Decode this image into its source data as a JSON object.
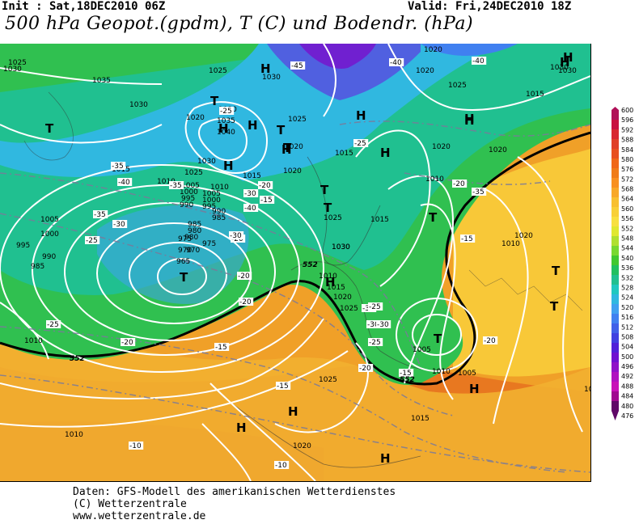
{
  "header": {
    "init": "Init : Sat,18DEC2010 06Z",
    "valid": "Valid: Fri,24DEC2010 18Z",
    "title": "500 hPa Geopot.(gpdm), T (C) und Bodendr. (hPa)"
  },
  "footer": {
    "line1": "Daten: GFS-Modell des amerikanischen Wetterdienstes",
    "line2": "(C) Wetterzentrale",
    "line3": "www.wetterzentrale.de"
  },
  "colorbar": {
    "levels": [
      "600",
      "596",
      "592",
      "588",
      "584",
      "580",
      "576",
      "572",
      "568",
      "564",
      "560",
      "556",
      "552",
      "548",
      "544",
      "540",
      "536",
      "532",
      "528",
      "524",
      "520",
      "516",
      "512",
      "508",
      "504",
      "500",
      "496",
      "492",
      "488",
      "484",
      "480",
      "476"
    ],
    "colors": [
      "#b01058",
      "#c81040",
      "#d82830",
      "#e04028",
      "#e85020",
      "#f06818",
      "#f07c18",
      "#f89020",
      "#f8a828",
      "#f8c030",
      "#f8d038",
      "#f8e040",
      "#e0e830",
      "#b0e030",
      "#78d830",
      "#40c830",
      "#20c060",
      "#20c090",
      "#20c8c0",
      "#30b8e0",
      "#40a0f0",
      "#4080f0",
      "#4060e8",
      "#4040e0",
      "#5020d8",
      "#7010d0",
      "#9010c8",
      "#b010c0",
      "#c810b8",
      "#a00890",
      "#600868"
    ],
    "range_top": "600",
    "range_bottom": "476"
  },
  "map": {
    "pressure_labels": [
      {
        "text": "1030"
      },
      {
        "text": "1035"
      },
      {
        "text": "1030"
      },
      {
        "text": "1025"
      },
      {
        "text": "1020"
      },
      {
        "text": "1015"
      },
      {
        "text": "1010"
      },
      {
        "text": "1005"
      },
      {
        "text": "1000"
      },
      {
        "text": "995"
      },
      {
        "text": "990"
      },
      {
        "text": "985"
      },
      {
        "text": "980"
      },
      {
        "text": "975"
      },
      {
        "text": "970"
      },
      {
        "text": "965"
      },
      {
        "text": "985"
      },
      {
        "text": "990"
      },
      {
        "text": "995"
      },
      {
        "text": "1000"
      },
      {
        "text": "1005"
      },
      {
        "text": "1010"
      },
      {
        "text": "1025"
      },
      {
        "text": "1030"
      },
      {
        "text": "1035"
      },
      {
        "text": "1040"
      },
      {
        "text": "1030"
      },
      {
        "text": "1025"
      },
      {
        "text": "1020"
      },
      {
        "text": "1015"
      },
      {
        "text": "1010"
      },
      {
        "text": "1005"
      },
      {
        "text": "1000"
      },
      {
        "text": "995"
      },
      {
        "text": "990"
      },
      {
        "text": "985"
      },
      {
        "text": "980"
      },
      {
        "text": "975"
      },
      {
        "text": "970"
      },
      {
        "text": "1030"
      },
      {
        "text": "1025"
      },
      {
        "text": "1020"
      },
      {
        "text": "1015"
      },
      {
        "text": "1010"
      },
      {
        "text": "1005"
      },
      {
        "text": "1020"
      },
      {
        "text": "1025"
      },
      {
        "text": "1030"
      },
      {
        "text": "1015"
      },
      {
        "text": "1020"
      },
      {
        "text": "1010"
      },
      {
        "text": "1025"
      },
      {
        "text": "1020"
      },
      {
        "text": "1015"
      },
      {
        "text": "1010"
      },
      {
        "text": "1005"
      },
      {
        "text": "1010"
      },
      {
        "text": "1015"
      },
      {
        "text": "1020"
      },
      {
        "text": "1025"
      },
      {
        "text": "1020"
      },
      {
        "text": "1020"
      },
      {
        "text": "1030"
      },
      {
        "text": "1025"
      },
      {
        "text": "1020"
      },
      {
        "text": "1015"
      },
      {
        "text": "1010"
      },
      {
        "text": "1030"
      },
      {
        "text": "1030"
      },
      {
        "text": "1010"
      }
    ],
    "temp_labels": [
      {
        "text": "-45"
      },
      {
        "text": "-40"
      },
      {
        "text": "-40"
      },
      {
        "text": "-35"
      },
      {
        "text": "-40"
      },
      {
        "text": "-35"
      },
      {
        "text": "-30"
      },
      {
        "text": "-35"
      },
      {
        "text": "-30"
      },
      {
        "text": "-25"
      },
      {
        "text": "-20"
      },
      {
        "text": "-20"
      },
      {
        "text": "-20"
      },
      {
        "text": "-25"
      },
      {
        "text": "-20"
      },
      {
        "text": "-15"
      },
      {
        "text": "-15"
      },
      {
        "text": "-10"
      },
      {
        "text": "-10"
      },
      {
        "text": "-15"
      },
      {
        "text": "-20"
      },
      {
        "text": "-25"
      },
      {
        "text": "-30"
      },
      {
        "text": "-35"
      },
      {
        "text": "-25"
      },
      {
        "text": "-20"
      },
      {
        "text": "-15"
      },
      {
        "text": "-25"
      },
      {
        "text": "-20"
      },
      {
        "text": "-15"
      },
      {
        "text": "-40"
      },
      {
        "text": "-30"
      },
      {
        "text": "-35"
      },
      {
        "text": "-30"
      },
      {
        "text": "-25"
      },
      {
        "text": "-20"
      }
    ],
    "centers": [
      {
        "text": "T",
        "kind": "low"
      },
      {
        "text": "T",
        "kind": "low"
      },
      {
        "text": "T",
        "kind": "low"
      },
      {
        "text": "T",
        "kind": "low"
      },
      {
        "text": "T",
        "kind": "low"
      },
      {
        "text": "T",
        "kind": "low"
      },
      {
        "text": "T",
        "kind": "low"
      },
      {
        "text": "T",
        "kind": "low"
      },
      {
        "text": "T",
        "kind": "low"
      },
      {
        "text": "T",
        "kind": "low"
      },
      {
        "text": "T",
        "kind": "low"
      },
      {
        "text": "H",
        "kind": "high"
      },
      {
        "text": "H",
        "kind": "high"
      },
      {
        "text": "H",
        "kind": "high"
      },
      {
        "text": "H",
        "kind": "high"
      },
      {
        "text": "H",
        "kind": "high"
      },
      {
        "text": "H",
        "kind": "high"
      },
      {
        "text": "H",
        "kind": "high"
      },
      {
        "text": "H",
        "kind": "high"
      },
      {
        "text": "H",
        "kind": "high"
      },
      {
        "text": "H",
        "kind": "high"
      },
      {
        "text": "H",
        "kind": "high"
      },
      {
        "text": "H",
        "kind": "high"
      },
      {
        "text": "H",
        "kind": "high"
      },
      {
        "text": "H",
        "kind": "high"
      },
      {
        "text": "H",
        "kind": "high"
      },
      {
        "text": "H",
        "kind": "high"
      }
    ],
    "contour_552": [
      "552",
      "552",
      "552"
    ]
  }
}
